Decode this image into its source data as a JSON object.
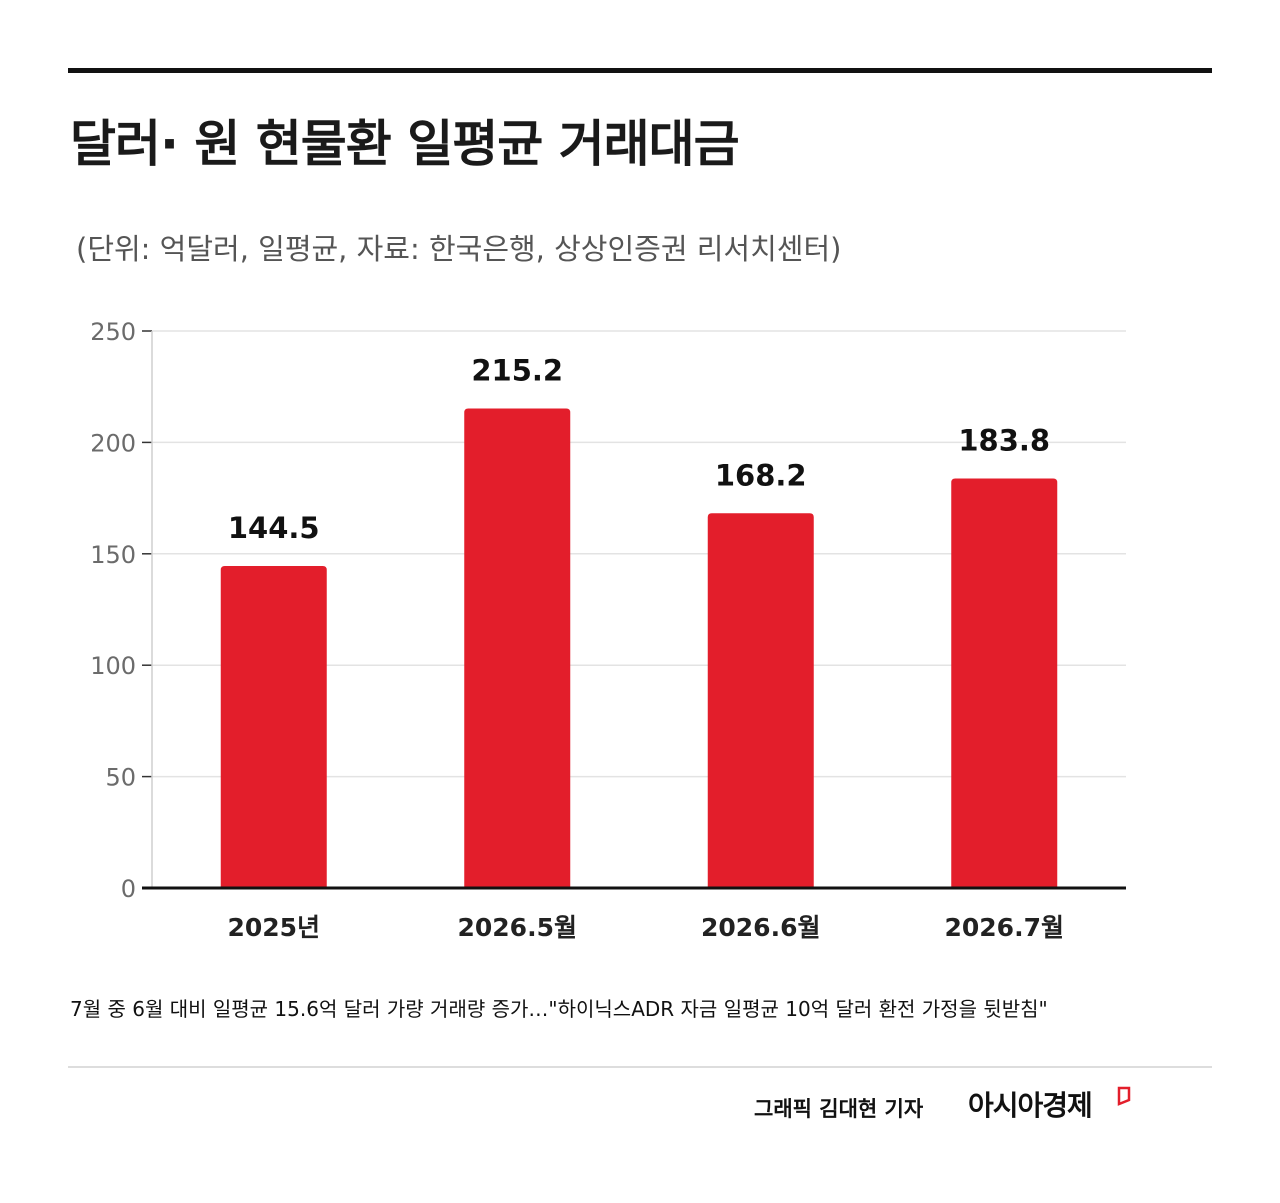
{
  "header": {
    "title": "달러· 원 현물환 일평균 거래대금",
    "subtitle": "(단위: 억달러, 일평균, 자료: 한국은행, 상상인증권 리서치센터)"
  },
  "chart_data": {
    "type": "bar",
    "categories": [
      "2025년",
      "2026.5월",
      "2026.6월",
      "2026.7월"
    ],
    "values": [
      144.5,
      215.2,
      168.2,
      183.8
    ],
    "value_labels": [
      "144.5",
      "215.2",
      "168.2",
      "183.8"
    ],
    "ylim": [
      0,
      250
    ],
    "yticks": [
      0,
      50,
      100,
      150,
      200,
      250
    ],
    "grid": true,
    "bar_color": "#e31e2b"
  },
  "footer": {
    "note": "7월 중 6월 대비 일평균 15.6억 달러 가량 거래량 증가…\"하이닉스ADR 자금 일평균 10억 달러 환전 가정을 뒷받침\"",
    "credit": "그래픽  김대현 기자",
    "logo_text": "아시아경제",
    "logo_mark_color": "#e31e2b"
  }
}
